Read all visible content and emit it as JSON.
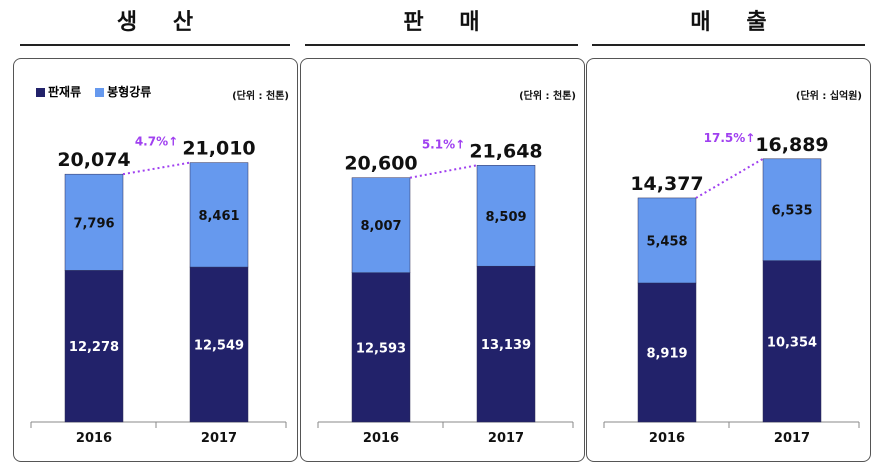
{
  "legend": {
    "series": [
      "판재류",
      "봉형강류"
    ],
    "colors": [
      "#22226a",
      "#6699ee"
    ]
  },
  "pct_color": "#a040f0",
  "chart_data": [
    {
      "type": "bar",
      "stacked": true,
      "title": "생 산",
      "unit": "(단위 : 천톤)",
      "categories": [
        "2016",
        "2017"
      ],
      "series": [
        {
          "name": "판재류",
          "values": [
            12278,
            12549
          ],
          "labels": [
            "12,278",
            "12,549"
          ]
        },
        {
          "name": "봉형강류",
          "values": [
            7796,
            8461
          ],
          "labels": [
            "7,796",
            "8,461"
          ]
        }
      ],
      "totals": [
        "20,074",
        "21,010"
      ],
      "growth": "4.7%↑",
      "ylim": [
        0,
        24300
      ]
    },
    {
      "type": "bar",
      "stacked": true,
      "title": "판 매",
      "unit": "(단위 : 천톤)",
      "categories": [
        "2016",
        "2017"
      ],
      "series": [
        {
          "name": "판재류",
          "values": [
            12593,
            13139
          ],
          "labels": [
            "12,593",
            "13,139"
          ]
        },
        {
          "name": "봉형강류",
          "values": [
            8007,
            8509
          ],
          "labels": [
            "8,007",
            "8,509"
          ]
        }
      ],
      "totals": [
        "20,600",
        "21,648"
      ],
      "growth": "5.1%↑",
      "ylim": [
        0,
        25300
      ]
    },
    {
      "type": "bar",
      "stacked": true,
      "title": "매 출",
      "unit": "(단위 : 십억원)",
      "categories": [
        "2016",
        "2017"
      ],
      "series": [
        {
          "name": "판재류",
          "values": [
            8919,
            10354
          ],
          "labels": [
            "8,919",
            "10,354"
          ]
        },
        {
          "name": "봉형강류",
          "values": [
            5458,
            6535
          ],
          "labels": [
            "5,458",
            "6,535"
          ]
        }
      ],
      "totals": [
        "14,377",
        "16,889"
      ],
      "growth": "17.5%↑",
      "ylim": [
        0,
        19250
      ]
    }
  ]
}
